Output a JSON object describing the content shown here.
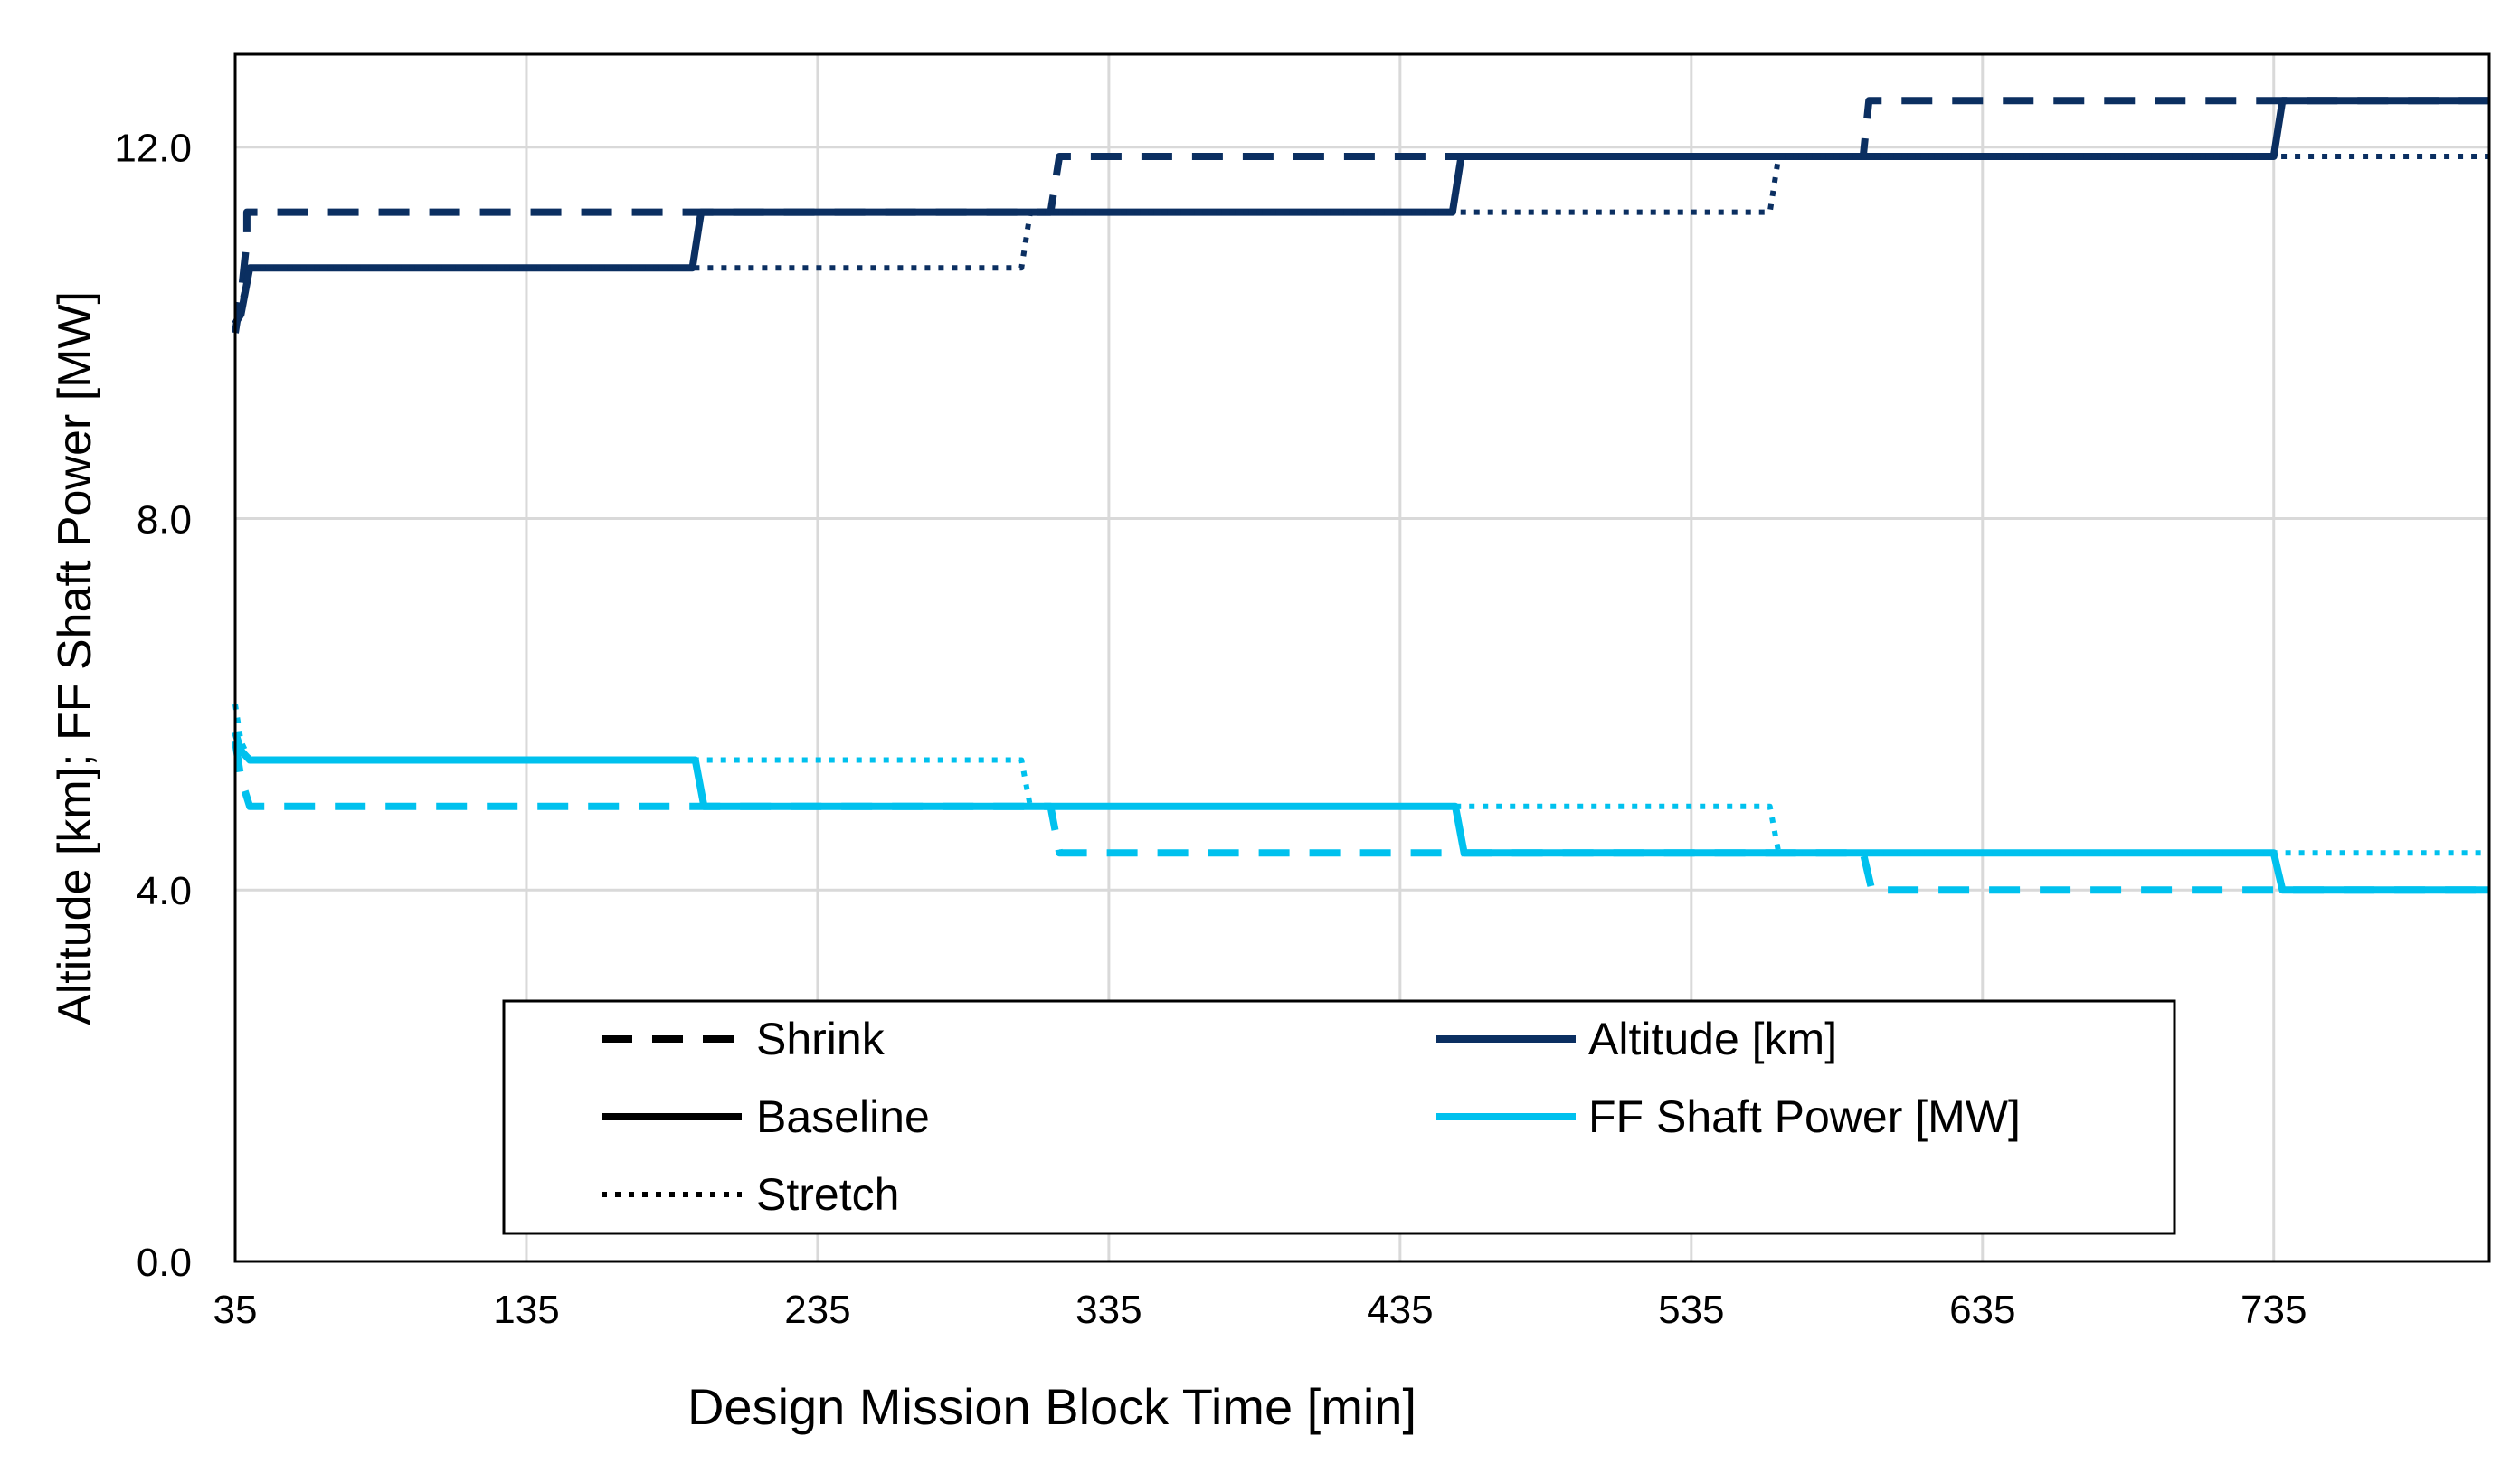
{
  "chart_data": {
    "type": "line",
    "title": "",
    "xlabel": "Design Mission Block Time [min]",
    "ylabel": "Altitude [km]; FF Shaft Power [MW]",
    "xlim": [
      35,
      809
    ],
    "ylim": [
      0,
      13
    ],
    "xticks": [
      35,
      135,
      235,
      335,
      435,
      535,
      635,
      735
    ],
    "yticks": [
      0,
      4,
      8,
      12
    ],
    "ytick_labels": [
      "0.0",
      "4.0",
      "8.0",
      "12.0"
    ],
    "grid": true,
    "colors": {
      "altitude": "#0b2f61",
      "power": "#00c1ee"
    },
    "legend": {
      "placement": "bottom-center",
      "styles": [
        {
          "label": "Shrink",
          "dash": "dashed"
        },
        {
          "label": "Baseline",
          "dash": "solid"
        },
        {
          "label": "Stretch",
          "dash": "dotted"
        }
      ],
      "quantities": [
        {
          "label": "Altitude [km]",
          "color_key": "altitude"
        },
        {
          "label": "FF Shaft Power [MW]",
          "color_key": "power"
        }
      ]
    },
    "series": [
      {
        "name": "Altitude [km] - Shrink",
        "quantity": "altitude",
        "style": "dashed",
        "x": [
          35,
          37,
          39,
          39,
          315,
          318,
          318,
          594,
          596,
          596,
          809
        ],
        "y": [
          10.0,
          10.4,
          11.0,
          11.3,
          11.3,
          11.9,
          11.9,
          11.9,
          12.5,
          12.5,
          12.5
        ]
      },
      {
        "name": "Altitude [km] - Baseline",
        "quantity": "altitude",
        "style": "solid",
        "x": [
          35,
          37,
          40,
          192,
          195,
          453,
          456,
          735,
          738,
          809
        ],
        "y": [
          10.1,
          10.2,
          10.7,
          10.7,
          11.3,
          11.3,
          11.9,
          11.9,
          12.5,
          12.5
        ]
      },
      {
        "name": "Altitude [km] - Stretch",
        "quantity": "altitude",
        "style": "dotted",
        "x": [
          35,
          37,
          40,
          305,
          308,
          562,
          565,
          809
        ],
        "y": [
          10.1,
          10.3,
          10.7,
          10.7,
          11.3,
          11.3,
          11.9,
          11.9
        ]
      },
      {
        "name": "FF Shaft Power [MW] - Shrink",
        "quantity": "power",
        "style": "dashed",
        "x": [
          35,
          37,
          40,
          315,
          318,
          594,
          597,
          809
        ],
        "y": [
          5.6,
          5.2,
          4.9,
          4.9,
          4.4,
          4.4,
          4.0,
          4.0
        ]
      },
      {
        "name": "FF Shaft Power [MW] - Baseline",
        "quantity": "power",
        "style": "solid",
        "x": [
          35,
          37,
          40,
          193,
          196,
          454,
          457,
          735,
          738,
          809
        ],
        "y": [
          5.7,
          5.5,
          5.4,
          5.4,
          4.9,
          4.9,
          4.4,
          4.4,
          4.0,
          4.0
        ]
      },
      {
        "name": "FF Shaft Power [MW] - Stretch",
        "quantity": "power",
        "style": "dotted",
        "x": [
          35,
          37,
          40,
          305,
          308,
          562,
          565,
          809
        ],
        "y": [
          6.0,
          5.6,
          5.4,
          5.4,
          4.9,
          4.9,
          4.4,
          4.4
        ]
      }
    ]
  }
}
